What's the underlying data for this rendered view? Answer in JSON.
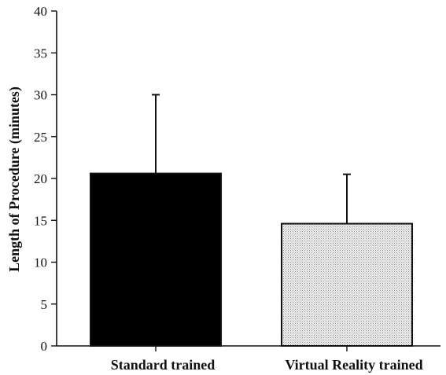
{
  "chart_data": {
    "type": "bar",
    "title": "",
    "xlabel": "",
    "ylabel": "Length of Procedure (minutes)",
    "categories": [
      "Standard trained",
      "Virtual Reality trained"
    ],
    "values": [
      20.6,
      14.6
    ],
    "error_upper": [
      30,
      20.5
    ],
    "ylim": [
      0,
      40
    ],
    "yticks": [
      0,
      5,
      10,
      15,
      20,
      25,
      30,
      35,
      40
    ],
    "grid": false,
    "bar_styles": [
      "solid-black",
      "light-gray-stipple"
    ],
    "colors": {
      "standard": "#000000",
      "virtual_reality": "#d9d9d9",
      "axis": "#111111"
    }
  }
}
